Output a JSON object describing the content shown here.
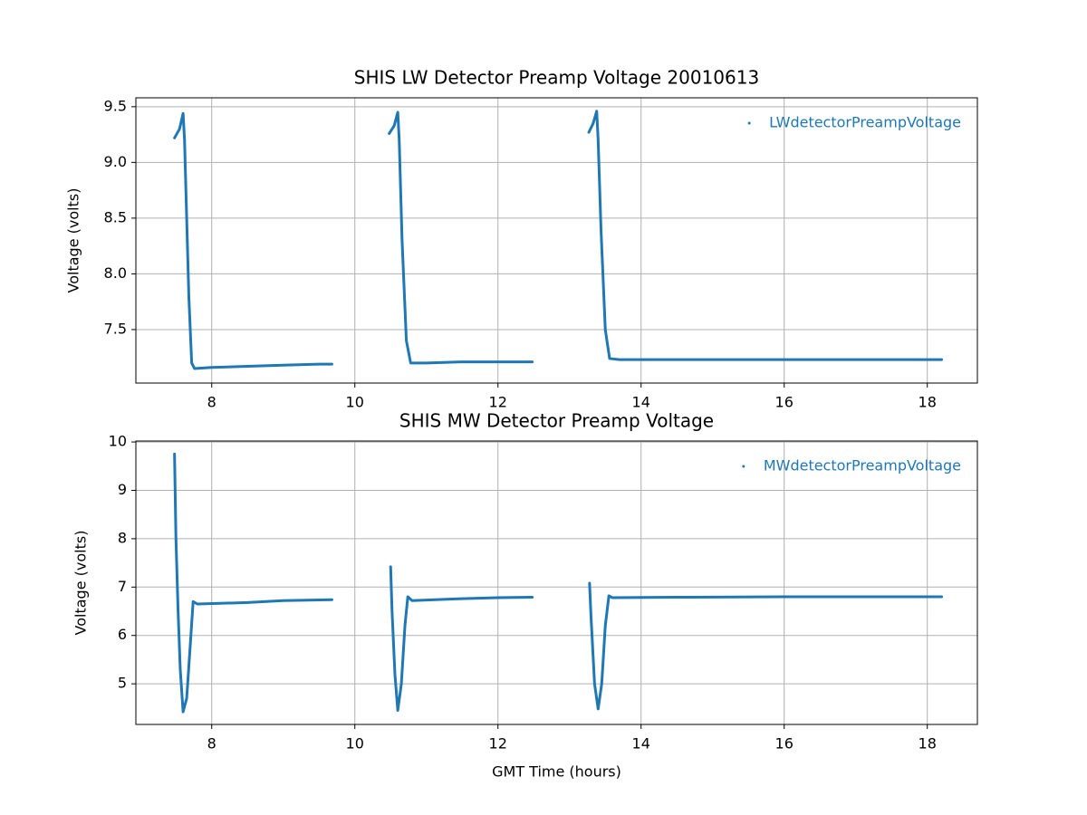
{
  "chart_data": [
    {
      "type": "line",
      "title": "SHIS LW Detector Preamp Voltage 20010613",
      "ylabel": "Voltage (volts)",
      "x": [
        7.48,
        7.55,
        7.6,
        7.62,
        7.65,
        7.68,
        7.72,
        7.76,
        8.0,
        8.5,
        9.0,
        9.5,
        9.68,
        null,
        10.48,
        10.55,
        10.6,
        10.62,
        10.66,
        10.72,
        10.78,
        11.0,
        11.5,
        12.0,
        12.48,
        null,
        13.27,
        13.33,
        13.38,
        13.4,
        13.44,
        13.5,
        13.56,
        13.7,
        14.5,
        16.0,
        17.0,
        18.2
      ],
      "series": [
        {
          "name": "LWdetectorPreampVoltage",
          "color": "#1f77b4",
          "values": [
            9.22,
            9.3,
            9.44,
            9.2,
            8.5,
            7.8,
            7.2,
            7.15,
            7.16,
            7.17,
            7.18,
            7.19,
            7.19,
            null,
            9.26,
            9.33,
            9.45,
            9.2,
            8.3,
            7.4,
            7.2,
            7.2,
            7.21,
            7.21,
            7.21,
            null,
            9.27,
            9.35,
            9.46,
            9.2,
            8.4,
            7.5,
            7.24,
            7.23,
            7.23,
            7.23,
            7.23,
            7.23
          ]
        }
      ],
      "xlim": [
        6.94,
        18.7
      ],
      "ylim": [
        7.02,
        9.58
      ],
      "xticks": [
        8,
        10,
        12,
        14,
        16,
        18
      ],
      "yticks": [
        7.5,
        {
          "value": 8,
          "label": "8.0"
        },
        8.5,
        {
          "value": 9,
          "label": "9.0"
        },
        9.5
      ],
      "grid": true,
      "legend": "upper right"
    },
    {
      "type": "line",
      "title": "SHIS MW Detector Preamp Voltage",
      "xlabel": "GMT Time (hours)",
      "ylabel": "Voltage (volts)",
      "x": [
        7.48,
        7.5,
        7.53,
        7.56,
        7.6,
        7.65,
        7.7,
        7.74,
        7.8,
        8.5,
        9.0,
        9.68,
        null,
        10.5,
        10.52,
        10.56,
        10.6,
        10.65,
        10.7,
        10.74,
        10.8,
        11.5,
        12.0,
        12.48,
        null,
        13.28,
        13.3,
        13.35,
        13.4,
        13.45,
        13.5,
        13.55,
        13.6,
        14.5,
        16.0,
        17.0,
        18.2
      ],
      "series": [
        {
          "name": "MWdetectorPreampVoltage",
          "color": "#1f77b4",
          "values": [
            9.75,
            8.0,
            6.5,
            5.3,
            4.42,
            4.7,
            5.8,
            6.7,
            6.65,
            6.68,
            6.72,
            6.74,
            null,
            7.42,
            6.5,
            5.2,
            4.45,
            5.0,
            6.2,
            6.8,
            6.72,
            6.76,
            6.78,
            6.79,
            null,
            7.08,
            6.4,
            5.0,
            4.48,
            5.0,
            6.2,
            6.82,
            6.78,
            6.79,
            6.8,
            6.8,
            6.8
          ]
        }
      ],
      "xlim": [
        6.94,
        18.7
      ],
      "ylim": [
        4.16,
        10.02
      ],
      "xticks": [
        8,
        10,
        12,
        14,
        16,
        18
      ],
      "yticks": [
        5,
        6,
        7,
        8,
        9,
        10
      ],
      "grid": true,
      "legend": "upper right"
    }
  ]
}
